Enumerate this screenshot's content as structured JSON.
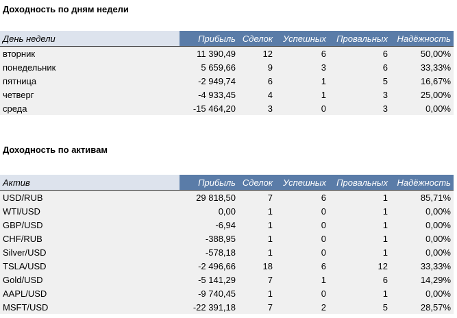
{
  "weekday_section": {
    "title": "Доходность по дням недели",
    "headers": [
      "День недели",
      "Прибыль",
      "Сделок",
      "Успешных",
      "Провальных",
      "Надёжность"
    ],
    "rows": [
      [
        "вторник",
        "11 390,49",
        "12",
        "6",
        "6",
        "50,00%"
      ],
      [
        "понедельник",
        "5 659,66",
        "9",
        "3",
        "6",
        "33,33%"
      ],
      [
        "пятница",
        "-2 949,74",
        "6",
        "1",
        "5",
        "16,67%"
      ],
      [
        "четверг",
        "-4 933,45",
        "4",
        "1",
        "3",
        "25,00%"
      ],
      [
        "среда",
        "-15 464,20",
        "3",
        "0",
        "3",
        "0,00%"
      ]
    ]
  },
  "asset_section": {
    "title": "Доходность по активам",
    "headers": [
      "Актив",
      "Прибыль",
      "Сделок",
      "Успешных",
      "Провальных",
      "Надёжность"
    ],
    "rows": [
      [
        "USD/RUB",
        "29 818,50",
        "7",
        "6",
        "1",
        "85,71%"
      ],
      [
        "WTI/USD",
        "0,00",
        "1",
        "0",
        "1",
        "0,00%"
      ],
      [
        "GBP/USD",
        "-6,94",
        "1",
        "0",
        "1",
        "0,00%"
      ],
      [
        "CHF/RUB",
        "-388,95",
        "1",
        "0",
        "1",
        "0,00%"
      ],
      [
        "Silver/USD",
        "-578,18",
        "1",
        "0",
        "1",
        "0,00%"
      ],
      [
        "TSLA/USD",
        "-2 496,66",
        "18",
        "6",
        "12",
        "33,33%"
      ],
      [
        "Gold/USD",
        "-5 141,29",
        "7",
        "1",
        "6",
        "14,29%"
      ],
      [
        "AAPL/USD",
        "-9 740,45",
        "1",
        "0",
        "1",
        "0,00%"
      ],
      [
        "MSFT/USD",
        "-22 391,18",
        "7",
        "2",
        "5",
        "28,57%"
      ]
    ]
  }
}
